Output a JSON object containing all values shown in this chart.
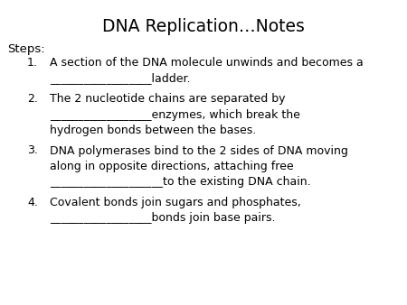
{
  "title": "DNA Replication…Notes",
  "background_color": "#ffffff",
  "text_color": "#000000",
  "title_fontsize": 13.5,
  "title_fontweight": "normal",
  "body_fontsize": 9.0,
  "steps_label": "Steps:",
  "steps_fontsize": 9.5,
  "numbers": [
    "1.",
    "2.",
    "3.",
    "4."
  ],
  "items": [
    [
      "A section of the DNA molecule unwinds and becomes a",
      "__________________ladder."
    ],
    [
      "The 2 nucleotide chains are separated by",
      "__________________enzymes, which break the",
      "hydrogen bonds between the bases."
    ],
    [
      "DNA polymerases bind to the 2 sides of DNA moving",
      "along in opposite directions, attaching free",
      "____________________to the existing DNA chain."
    ],
    [
      "Covalent bonds join sugars and phosphates,",
      "__________________bonds join base pairs."
    ]
  ]
}
